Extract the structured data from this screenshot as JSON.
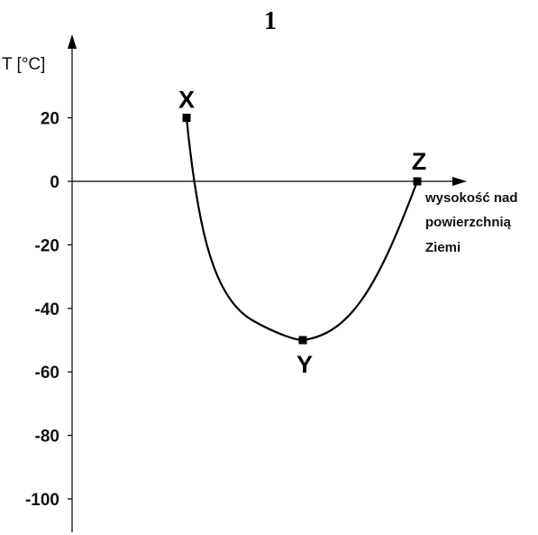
{
  "figure_number": "1",
  "chart_data": {
    "type": "line",
    "ylabel": "T [°C]",
    "xlabel_lines": [
      "wysokość nad",
      "powierzchnią",
      "Ziemi"
    ],
    "yticks": [
      20,
      0,
      -20,
      -40,
      -60,
      -80,
      -100
    ],
    "ytick_labels": [
      "20",
      "0",
      "-20",
      "-40",
      "-60",
      "-80",
      "-100"
    ],
    "ylim": [
      -110,
      38
    ],
    "grid": false,
    "points": [
      {
        "label": "X",
        "value": 20
      },
      {
        "label": "Y",
        "value": -50
      },
      {
        "label": "Z",
        "value": 0
      }
    ]
  }
}
